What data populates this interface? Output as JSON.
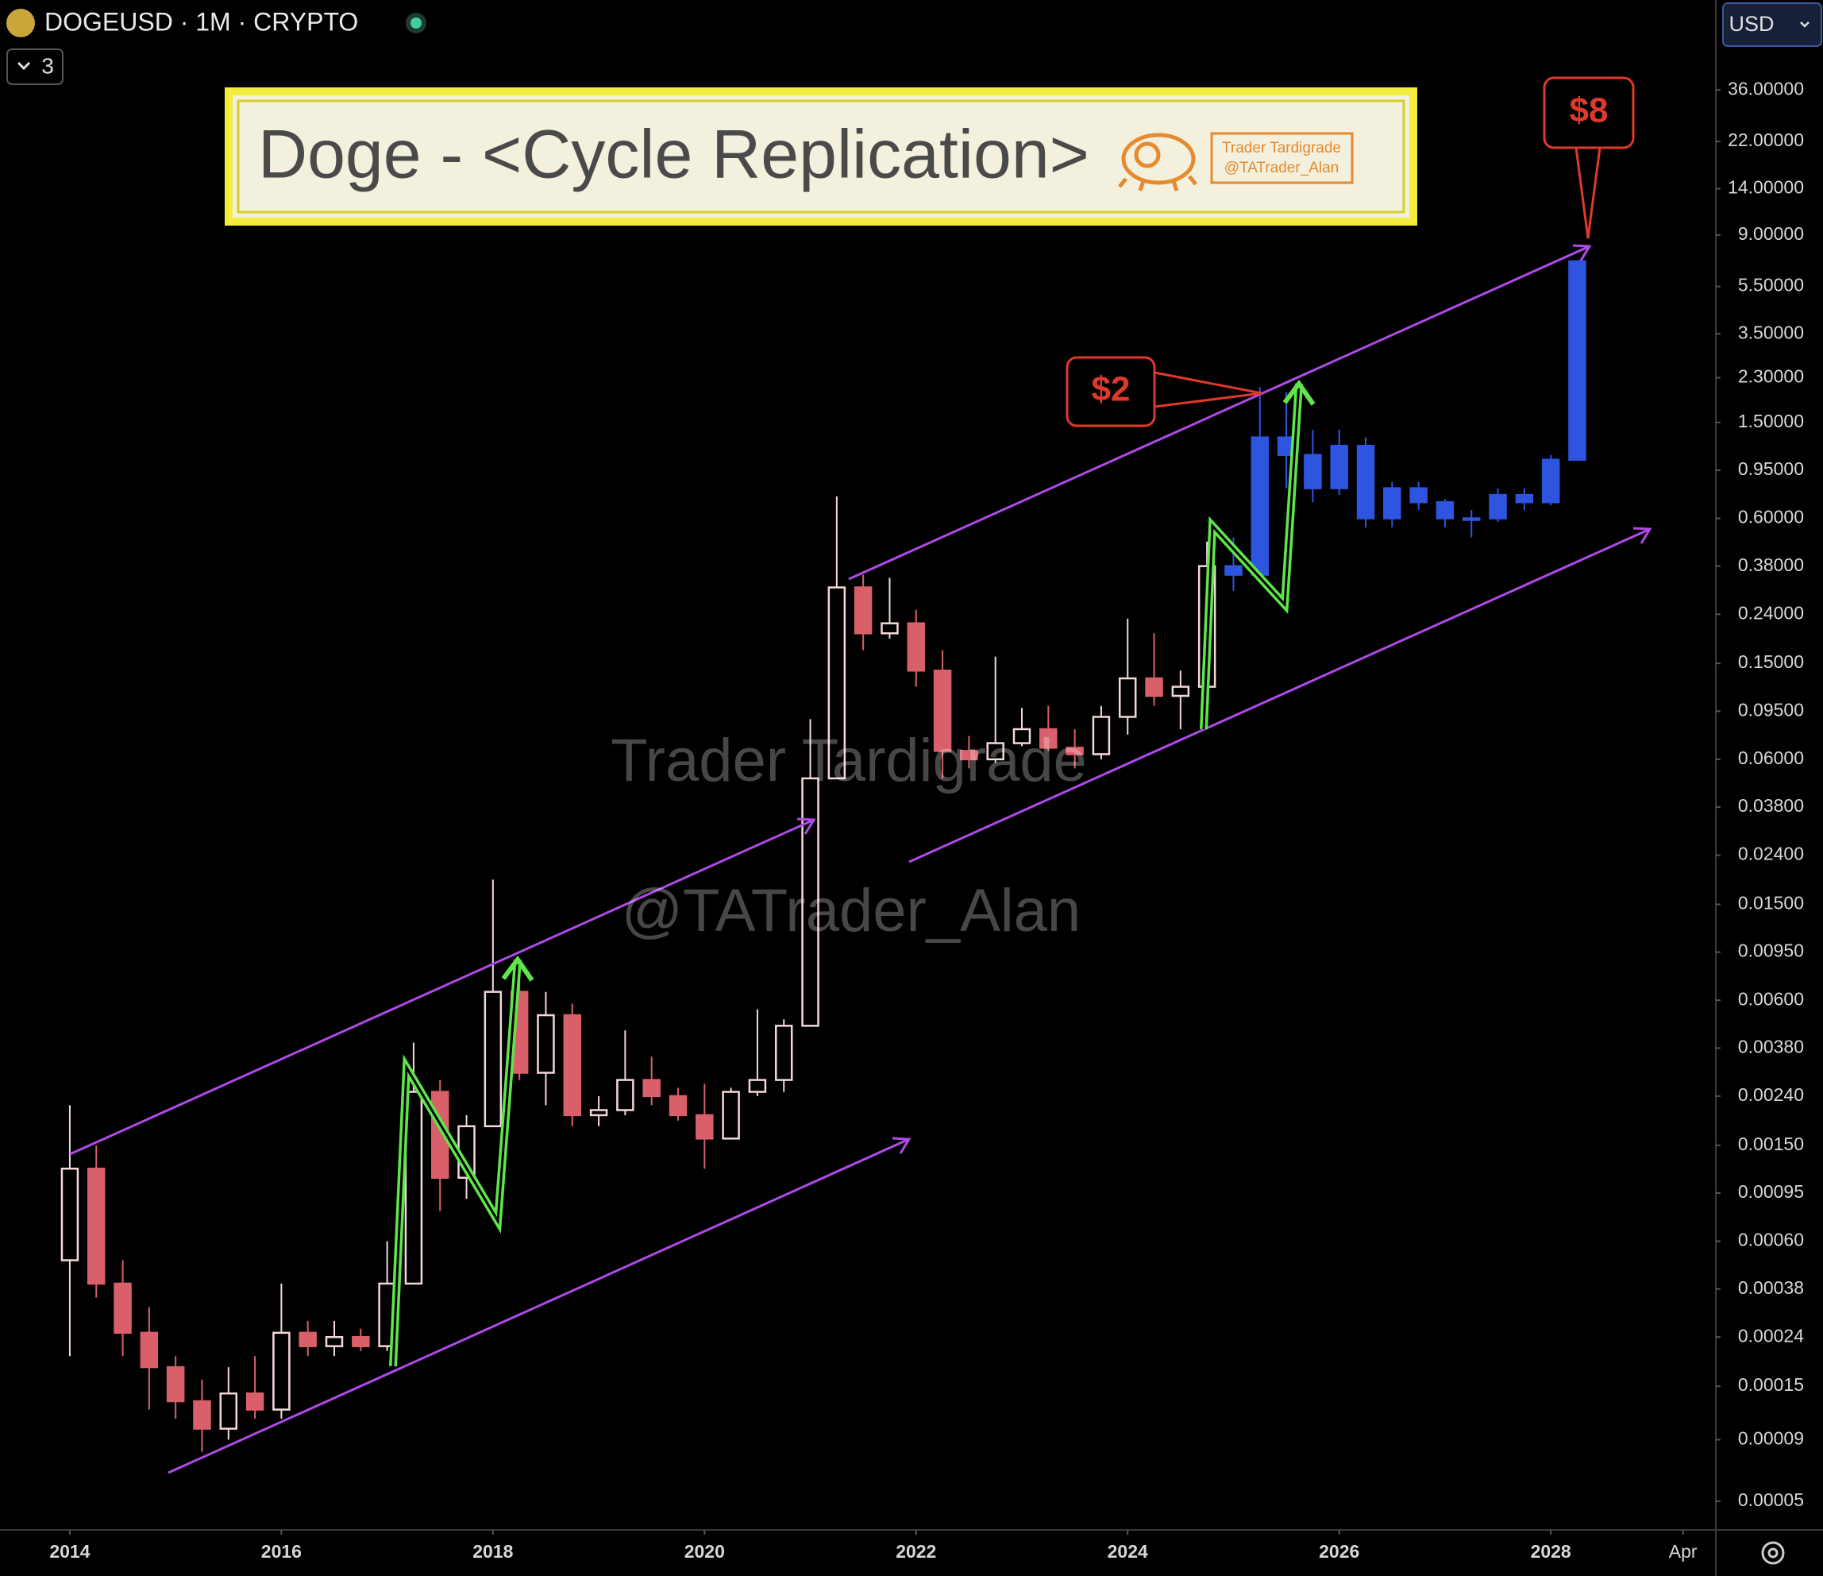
{
  "header": {
    "symbol": "DOGEUSD · 1M · CRYPTO",
    "indicator_count": 3,
    "currency": "USD"
  },
  "chart_data": {
    "type": "candlestick",
    "title": "Doge - <Cycle Replication>",
    "logo": [
      "Trader Tardigrade",
      "@TATrader_Alan"
    ],
    "watermarks": [
      "Trader Tardigrade",
      "@TATrader_Alan"
    ],
    "annotations": [
      "$2",
      "$8"
    ],
    "log_scale": true,
    "grid": false,
    "xlim": [
      2013.34,
      2029.56
    ],
    "xticks": [
      2014,
      2016,
      2018,
      2020,
      2022,
      2024,
      2026,
      2028,
      {
        "value": 2029.25,
        "label": "Apr"
      }
    ],
    "ylim": [
      3.8e-05,
      85
    ],
    "yticks": [
      {
        "value": 36,
        "label": "36.00000"
      },
      {
        "value": 22,
        "label": "22.00000"
      },
      {
        "value": 14,
        "label": "14.00000"
      },
      {
        "value": 9,
        "label": "9.00000"
      },
      {
        "value": 5.5,
        "label": "5.50000"
      },
      {
        "value": 3.5,
        "label": "3.50000"
      },
      {
        "value": 2.3,
        "label": "2.30000"
      },
      {
        "value": 1.5,
        "label": "1.50000"
      },
      {
        "value": 0.95,
        "label": "0.95000"
      },
      {
        "value": 0.6,
        "label": "0.60000"
      },
      {
        "value": 0.38,
        "label": "0.38000"
      },
      {
        "value": 0.24,
        "label": "0.24000"
      },
      {
        "value": 0.15,
        "label": "0.15000"
      },
      {
        "value": 0.095,
        "label": "0.09500"
      },
      {
        "value": 0.06,
        "label": "0.06000"
      },
      {
        "value": 0.038,
        "label": "0.03800"
      },
      {
        "value": 0.024,
        "label": "0.02400"
      },
      {
        "value": 0.015,
        "label": "0.01500"
      },
      {
        "value": 0.0095,
        "label": "0.00950"
      },
      {
        "value": 0.006,
        "label": "0.00600"
      },
      {
        "value": 0.0038,
        "label": "0.00380"
      },
      {
        "value": 0.0024,
        "label": "0.00240"
      },
      {
        "value": 0.0015,
        "label": "0.00150"
      },
      {
        "value": 0.00095,
        "label": "0.00095"
      },
      {
        "value": 0.0006,
        "label": "0.00060"
      },
      {
        "value": 0.00038,
        "label": "0.00038"
      },
      {
        "value": 0.00024,
        "label": "0.00024"
      },
      {
        "value": 0.00015,
        "label": "0.00015"
      },
      {
        "value": 9e-05,
        "label": "0.00009"
      },
      {
        "value": 5e-05,
        "label": "0.00005"
      }
    ],
    "series": [
      {
        "color": "#f4d9d9",
        "down_color": "#d9606a",
        "x": [
          2014,
          2014.25,
          2014.5,
          2014.75,
          2015,
          2015.25,
          2015.5,
          2015.75,
          2016,
          2016.25,
          2016.5,
          2016.75,
          2017,
          2017.25,
          2017.5,
          2017.75,
          2018,
          2018.25,
          2018.5,
          2018.75,
          2019,
          2019.25,
          2019.5,
          2019.75,
          2020,
          2020.25,
          2020.5,
          2020.75,
          2021,
          2021.25,
          2021.5,
          2021.75,
          2022,
          2022.25,
          2022.5,
          2022.75,
          2023,
          2023.25,
          2023.5,
          2023.75,
          2024,
          2024.25,
          2024.5,
          2024.75
        ],
        "open": [
          0.0005,
          0.0012,
          0.0004,
          0.00025,
          0.00018,
          0.00013,
          0.0001,
          0.00014,
          0.00012,
          0.00025,
          0.00022,
          0.00024,
          0.00022,
          0.0004,
          0.0025,
          0.0011,
          0.0018,
          0.0065,
          0.003,
          0.0052,
          0.002,
          0.0021,
          0.0028,
          0.0024,
          0.002,
          0.0016,
          0.0025,
          0.0028,
          0.0047,
          0.05,
          0.31,
          0.2,
          0.22,
          0.14,
          0.065,
          0.06,
          0.07,
          0.08,
          0.067,
          0.063,
          0.09,
          0.13,
          0.11,
          0.12
        ],
        "high": [
          0.0022,
          0.0015,
          0.0005,
          0.00032,
          0.0002,
          0.00016,
          0.00018,
          0.0002,
          0.0004,
          0.00028,
          0.00028,
          0.00026,
          0.0006,
          0.004,
          0.0028,
          0.002,
          0.019,
          0.0078,
          0.0065,
          0.0058,
          0.0024,
          0.0045,
          0.0035,
          0.0026,
          0.0027,
          0.0026,
          0.0055,
          0.005,
          0.088,
          0.74,
          0.35,
          0.34,
          0.25,
          0.17,
          0.075,
          0.16,
          0.098,
          0.1,
          0.08,
          0.1,
          0.23,
          0.2,
          0.14,
          0.48
        ],
        "low": [
          0.0002,
          0.00035,
          0.0002,
          0.00012,
          0.00011,
          8e-05,
          9e-05,
          0.00011,
          0.00011,
          0.0002,
          0.0002,
          0.00021,
          0.00021,
          0.0004,
          0.0008,
          0.0009,
          0.0018,
          0.0028,
          0.0022,
          0.0018,
          0.0018,
          0.002,
          0.0022,
          0.0019,
          0.0012,
          0.0016,
          0.0024,
          0.0025,
          0.0047,
          0.05,
          0.17,
          0.19,
          0.12,
          0.05,
          0.055,
          0.058,
          0.068,
          0.065,
          0.055,
          0.06,
          0.076,
          0.1,
          0.08,
          0.1
        ],
        "close": [
          0.0012,
          0.0004,
          0.00025,
          0.00018,
          0.00013,
          0.0001,
          0.00014,
          0.00012,
          0.00025,
          0.00022,
          0.00024,
          0.00022,
          0.0004,
          0.0025,
          0.0011,
          0.0018,
          0.0065,
          0.003,
          0.0052,
          0.002,
          0.0021,
          0.0028,
          0.0024,
          0.002,
          0.0016,
          0.0025,
          0.0028,
          0.0047,
          0.05,
          0.31,
          0.2,
          0.22,
          0.14,
          0.065,
          0.06,
          0.07,
          0.08,
          0.067,
          0.063,
          0.09,
          0.13,
          0.11,
          0.12,
          0.38
        ]
      },
      {
        "color": "#2d55e0",
        "down_color": "#2d55e0",
        "x": [
          2025,
          2025.25,
          2025.5,
          2025.75,
          2026,
          2026.25,
          2026.5,
          2026.75,
          2027,
          2027.25,
          2027.5,
          2027.75,
          2028,
          2028.25
        ],
        "open": [
          0.38,
          0.35,
          1.3,
          1.1,
          0.8,
          1.2,
          0.6,
          0.8,
          0.7,
          0.6,
          0.6,
          0.75,
          0.7,
          1.05
        ],
        "high": [
          0.5,
          2.1,
          2.0,
          1.4,
          1.4,
          1.3,
          0.85,
          0.85,
          0.72,
          0.65,
          0.8,
          0.8,
          1.1,
          7.0
        ],
        "low": [
          0.3,
          0.35,
          0.8,
          0.7,
          0.75,
          0.55,
          0.55,
          0.65,
          0.55,
          0.5,
          0.58,
          0.65,
          0.68,
          1.05
        ],
        "close": [
          0.35,
          1.3,
          1.1,
          0.8,
          1.2,
          0.6,
          0.8,
          0.7,
          0.6,
          0.6,
          0.75,
          0.7,
          1.05,
          7.0
        ]
      }
    ]
  }
}
